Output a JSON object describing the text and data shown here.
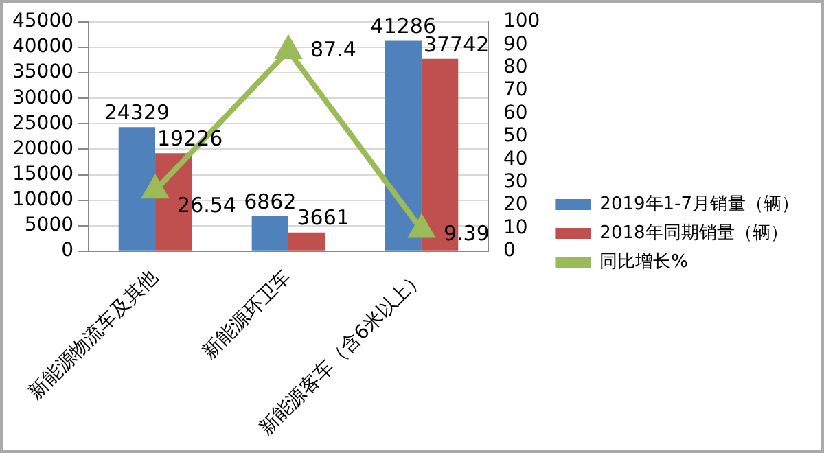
{
  "chart_data": {
    "type": "bar",
    "categories": [
      "新能源物流车及其他",
      "新能源环卫车",
      "新能源客车（含6米以上）"
    ],
    "series": [
      {
        "name": "2019年1-7月销量（辆）",
        "color": "#4f81bd",
        "values": [
          24329,
          6862,
          41286
        ]
      },
      {
        "name": "2018年同期销量（辆）",
        "color": "#c0504d",
        "values": [
          19226,
          3661,
          37742
        ]
      },
      {
        "name": "同比增长%",
        "type": "line",
        "axis": "y2",
        "color": "#9bbb59",
        "values": [
          26.54,
          87.4,
          9.39
        ],
        "marker": "triangle"
      }
    ],
    "ylim": [
      0,
      45000
    ],
    "yticks": [
      0,
      5000,
      10000,
      15000,
      20000,
      25000,
      30000,
      35000,
      40000,
      45000
    ],
    "y2lim": [
      0,
      100
    ],
    "y2ticks": [
      0,
      10,
      20,
      30,
      40,
      50,
      60,
      70,
      80,
      90,
      100
    ],
    "grid": "y",
    "legend": "right",
    "data_labels": true
  }
}
